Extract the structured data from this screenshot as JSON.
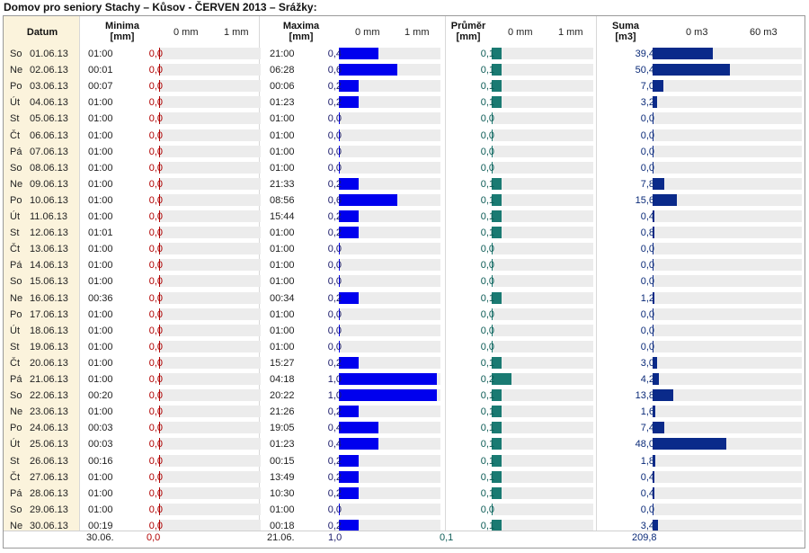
{
  "title": "Domov pro seniory Stachy – Kůsov - ČERVEN 2013 – Srážky:",
  "headers": {
    "date": "Datum",
    "min": [
      "Minima",
      "[mm]"
    ],
    "max": [
      "Maxima",
      "[mm]"
    ],
    "avg": [
      "Průměr",
      "[mm]"
    ],
    "sum": [
      "Suma",
      "[m3]"
    ]
  },
  "scales": {
    "min": [
      "0 mm",
      "1 mm"
    ],
    "max": [
      "0 mm",
      "1 mm"
    ],
    "avg": [
      "0 mm",
      "1 mm"
    ],
    "sum": [
      "0 m3",
      "60 m3"
    ]
  },
  "colors": {
    "min": "#b00000",
    "max": "#0000ee",
    "avg": "#1a7a72",
    "sum": "#0a2a8a",
    "date_bg": "#fbf3dc",
    "track": "#ececec"
  },
  "rows": [
    {
      "day": "So",
      "date": "01.06.13",
      "tmin": "01:00",
      "vmin": "0,0",
      "tmax": "21:00",
      "vmax": "0,4",
      "vavg": "0,1",
      "vsum": "39,4"
    },
    {
      "day": "Ne",
      "date": "02.06.13",
      "tmin": "00:01",
      "vmin": "0,0",
      "tmax": "06:28",
      "vmax": "0,6",
      "vavg": "0,1",
      "vsum": "50,4"
    },
    {
      "day": "Po",
      "date": "03.06.13",
      "tmin": "00:07",
      "vmin": "0,0",
      "tmax": "00:06",
      "vmax": "0,2",
      "vavg": "0,1",
      "vsum": "7,0"
    },
    {
      "day": "Út",
      "date": "04.06.13",
      "tmin": "01:00",
      "vmin": "0,0",
      "tmax": "01:23",
      "vmax": "0,2",
      "vavg": "0,1",
      "vsum": "3,2"
    },
    {
      "day": "St",
      "date": "05.06.13",
      "tmin": "01:00",
      "vmin": "0,0",
      "tmax": "01:00",
      "vmax": "0,0",
      "vavg": "0,0",
      "vsum": "0,0"
    },
    {
      "day": "Čt",
      "date": "06.06.13",
      "tmin": "01:00",
      "vmin": "0,0",
      "tmax": "01:00",
      "vmax": "0,0",
      "vavg": "0,0",
      "vsum": "0,0"
    },
    {
      "day": "Pá",
      "date": "07.06.13",
      "tmin": "01:00",
      "vmin": "0,0",
      "tmax": "01:00",
      "vmax": "0,0",
      "vavg": "0,0",
      "vsum": "0,0"
    },
    {
      "day": "So",
      "date": "08.06.13",
      "tmin": "01:00",
      "vmin": "0,0",
      "tmax": "01:00",
      "vmax": "0,0",
      "vavg": "0,0",
      "vsum": "0,0"
    },
    {
      "day": "Ne",
      "date": "09.06.13",
      "tmin": "01:00",
      "vmin": "0,0",
      "tmax": "21:33",
      "vmax": "0,2",
      "vavg": "0,1",
      "vsum": "7,8"
    },
    {
      "day": "Po",
      "date": "10.06.13",
      "tmin": "01:00",
      "vmin": "0,0",
      "tmax": "08:56",
      "vmax": "0,6",
      "vavg": "0,1",
      "vsum": "15,6"
    },
    {
      "day": "Út",
      "date": "11.06.13",
      "tmin": "01:00",
      "vmin": "0,0",
      "tmax": "15:44",
      "vmax": "0,2",
      "vavg": "0,1",
      "vsum": "0,4"
    },
    {
      "day": "St",
      "date": "12.06.13",
      "tmin": "01:01",
      "vmin": "0,0",
      "tmax": "01:00",
      "vmax": "0,2",
      "vavg": "0,1",
      "vsum": "0,8"
    },
    {
      "day": "Čt",
      "date": "13.06.13",
      "tmin": "01:00",
      "vmin": "0,0",
      "tmax": "01:00",
      "vmax": "0,0",
      "vavg": "0,0",
      "vsum": "0,0"
    },
    {
      "day": "Pá",
      "date": "14.06.13",
      "tmin": "01:00",
      "vmin": "0,0",
      "tmax": "01:00",
      "vmax": "0,0",
      "vavg": "0,0",
      "vsum": "0,0"
    },
    {
      "day": "So",
      "date": "15.06.13",
      "tmin": "01:00",
      "vmin": "0,0",
      "tmax": "01:00",
      "vmax": "0,0",
      "vavg": "0,0",
      "vsum": "0,0"
    },
    {
      "day": "Ne",
      "date": "16.06.13",
      "tmin": "00:36",
      "vmin": "0,0",
      "tmax": "00:34",
      "vmax": "0,2",
      "vavg": "0,1",
      "vsum": "1,2"
    },
    {
      "day": "Po",
      "date": "17.06.13",
      "tmin": "01:00",
      "vmin": "0,0",
      "tmax": "01:00",
      "vmax": "0,0",
      "vavg": "0,0",
      "vsum": "0,0"
    },
    {
      "day": "Út",
      "date": "18.06.13",
      "tmin": "01:00",
      "vmin": "0,0",
      "tmax": "01:00",
      "vmax": "0,0",
      "vavg": "0,0",
      "vsum": "0,0"
    },
    {
      "day": "St",
      "date": "19.06.13",
      "tmin": "01:00",
      "vmin": "0,0",
      "tmax": "01:00",
      "vmax": "0,0",
      "vavg": "0,0",
      "vsum": "0,0"
    },
    {
      "day": "Čt",
      "date": "20.06.13",
      "tmin": "01:00",
      "vmin": "0,0",
      "tmax": "15:27",
      "vmax": "0,2",
      "vavg": "0,1",
      "vsum": "3,0"
    },
    {
      "day": "Pá",
      "date": "21.06.13",
      "tmin": "01:00",
      "vmin": "0,0",
      "tmax": "04:18",
      "vmax": "1,0",
      "vavg": "0,2",
      "vsum": "4,2"
    },
    {
      "day": "So",
      "date": "22.06.13",
      "tmin": "00:20",
      "vmin": "0,0",
      "tmax": "20:22",
      "vmax": "1,0",
      "vavg": "0,1",
      "vsum": "13,8"
    },
    {
      "day": "Ne",
      "date": "23.06.13",
      "tmin": "01:00",
      "vmin": "0,0",
      "tmax": "21:26",
      "vmax": "0,2",
      "vavg": "0,1",
      "vsum": "1,6"
    },
    {
      "day": "Po",
      "date": "24.06.13",
      "tmin": "00:03",
      "vmin": "0,0",
      "tmax": "19:05",
      "vmax": "0,4",
      "vavg": "0,1",
      "vsum": "7,4"
    },
    {
      "day": "Út",
      "date": "25.06.13",
      "tmin": "00:03",
      "vmin": "0,0",
      "tmax": "01:23",
      "vmax": "0,4",
      "vavg": "0,1",
      "vsum": "48,0"
    },
    {
      "day": "St",
      "date": "26.06.13",
      "tmin": "00:16",
      "vmin": "0,0",
      "tmax": "00:15",
      "vmax": "0,2",
      "vavg": "0,1",
      "vsum": "1,8"
    },
    {
      "day": "Čt",
      "date": "27.06.13",
      "tmin": "01:00",
      "vmin": "0,0",
      "tmax": "13:49",
      "vmax": "0,2",
      "vavg": "0,1",
      "vsum": "0,4"
    },
    {
      "day": "Pá",
      "date": "28.06.13",
      "tmin": "01:00",
      "vmin": "0,0",
      "tmax": "10:30",
      "vmax": "0,2",
      "vavg": "0,1",
      "vsum": "0,4"
    },
    {
      "day": "So",
      "date": "29.06.13",
      "tmin": "01:00",
      "vmin": "0,0",
      "tmax": "01:00",
      "vmax": "0,0",
      "vavg": "0,0",
      "vsum": "0,0"
    },
    {
      "day": "Ne",
      "date": "30.06.13",
      "tmin": "00:19",
      "vmin": "0,0",
      "tmax": "00:18",
      "vmax": "0,2",
      "vavg": "0,1",
      "vsum": "3,4"
    }
  ],
  "footer": {
    "tmin": "30.06.",
    "vmin": "0,0",
    "tmax": "21.06.",
    "vmax": "1,0",
    "vavg": "0,1",
    "vsum": "209,8"
  }
}
